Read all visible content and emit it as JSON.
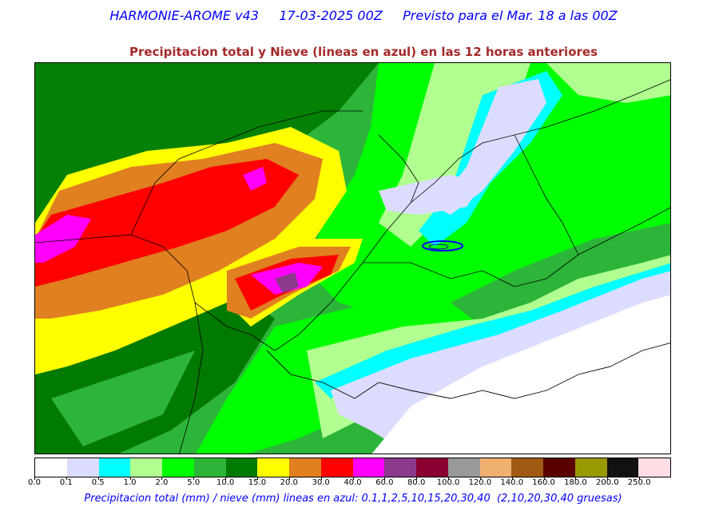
{
  "header": {
    "title": "HARMONIE-AROME v43     17-03-2025 00Z     Previsto para el Mar. 18 a las 00Z",
    "subtitle": "Precipitacion total y Nieve (lineas en azul) en las 12 horas anteriores"
  },
  "legend": {
    "caption": "Precipitacion total (mm) / nieve (mm) lineas en azul: 0.1,1,2,5,10,15,20,30,40  (2,10,20,30,40 gruesas)",
    "ticks": [
      "0.0",
      "0.1",
      "0.5",
      "1.0",
      "2.0",
      "5.0",
      "10.0",
      "15.0",
      "20.0",
      "30.0",
      "40.0",
      "60.0",
      "80.0",
      "100.0",
      "120.0",
      "140.0",
      "160.0",
      "180.0",
      "200.0",
      "250.0"
    ],
    "colors": [
      "#ffffff",
      "#dcdcff",
      "#00ffff",
      "#b0ff90",
      "#00ff00",
      "#2db53a",
      "#007a00",
      "#ffff00",
      "#e08020",
      "#ff0000",
      "#ff00ff",
      "#8b3a8b",
      "#8b0033",
      "#999999",
      "#f0b070",
      "#a05a14",
      "#5a0000",
      "#999900",
      "#111111",
      "#ffdde5"
    ]
  }
}
